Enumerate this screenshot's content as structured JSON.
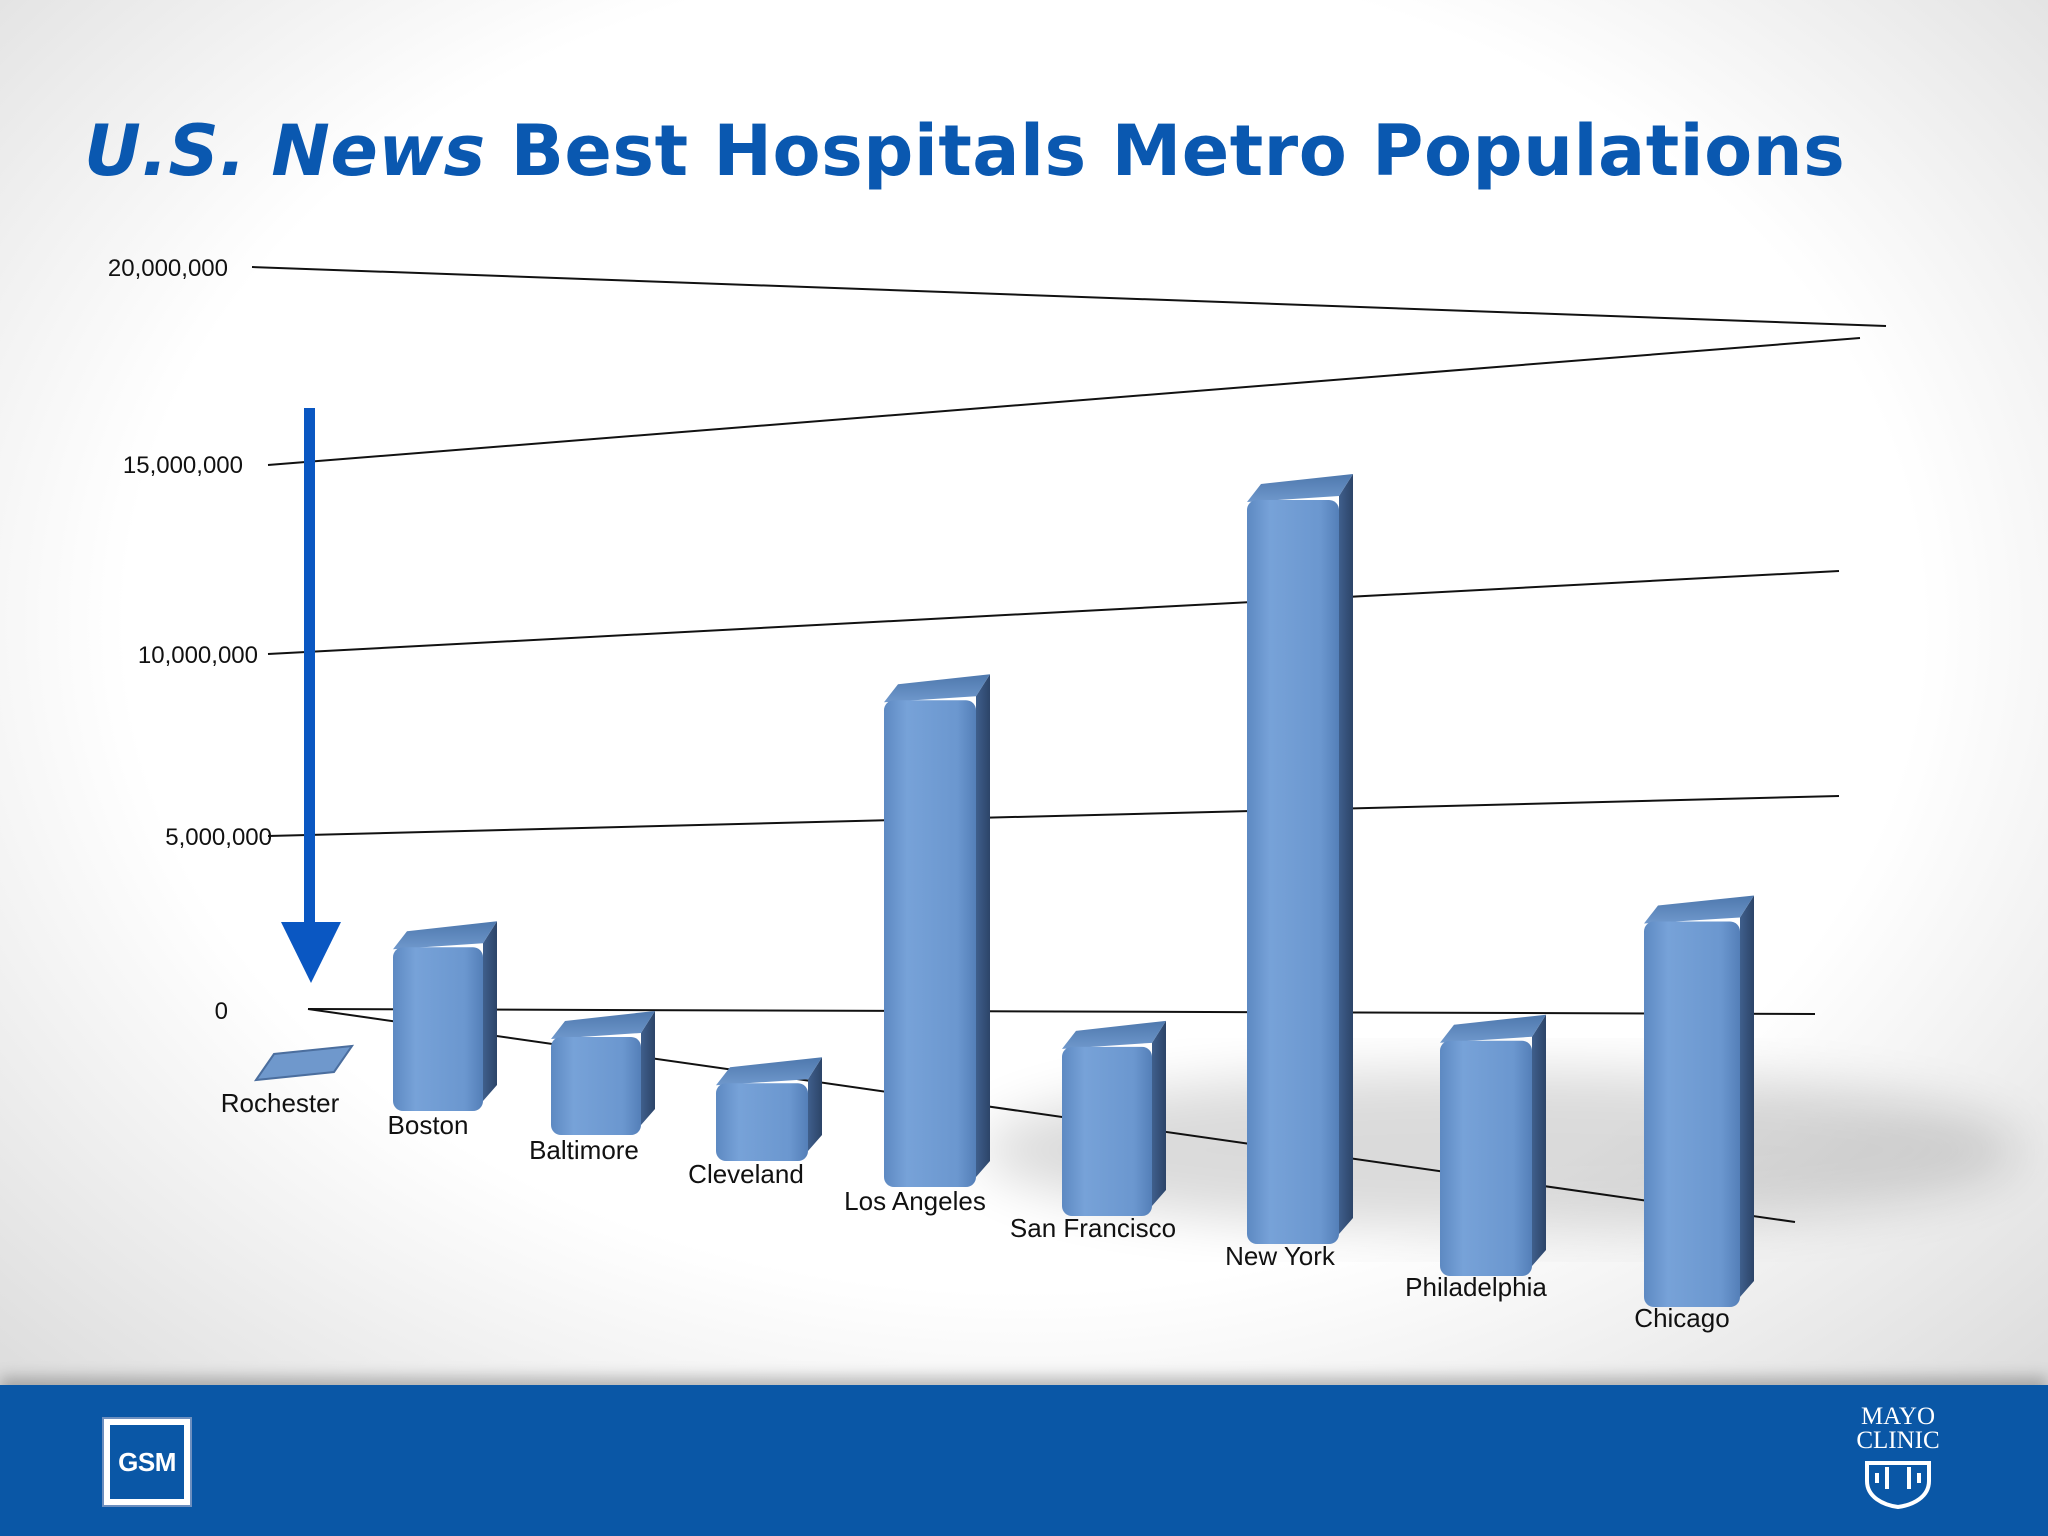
{
  "title": {
    "italic_part": "U.S. News",
    "rest": "Best Hospitals Metro Populations"
  },
  "chart_data": {
    "type": "bar",
    "title": "U.S. News Best Hospitals Metro Populations",
    "categories": [
      "Rochester",
      "Boston",
      "Baltimore",
      "Cleveland",
      "Los Angeles",
      "San Francisco",
      "New York",
      "Philadelphia",
      "Chicago"
    ],
    "values": [
      200000,
      4600000,
      2700000,
      2100000,
      12900000,
      4400000,
      19000000,
      5900000,
      9500000
    ],
    "ylim": [
      0,
      20000000
    ],
    "y_ticks": [
      0,
      5000000,
      10000000,
      15000000,
      20000000
    ],
    "y_tick_labels": [
      "0",
      "5,000,000",
      "10,000,000",
      "15,000,000",
      "20,000,000"
    ],
    "grid": true,
    "perspective_3d": true,
    "bar_color": "#6f9bd2",
    "annotation": "downward arrow pointing to Rochester"
  },
  "colors": {
    "title": "#0a58b0",
    "footer": "#0a57a6",
    "arrow": "#0a57c2",
    "bar": "#6f9bd2"
  },
  "footer": {
    "left_logo": "GSM",
    "right_logo_line1": "MAYO",
    "right_logo_line2": "CLINIC",
    "right_logo_icon": "mayo-shield-icon"
  }
}
